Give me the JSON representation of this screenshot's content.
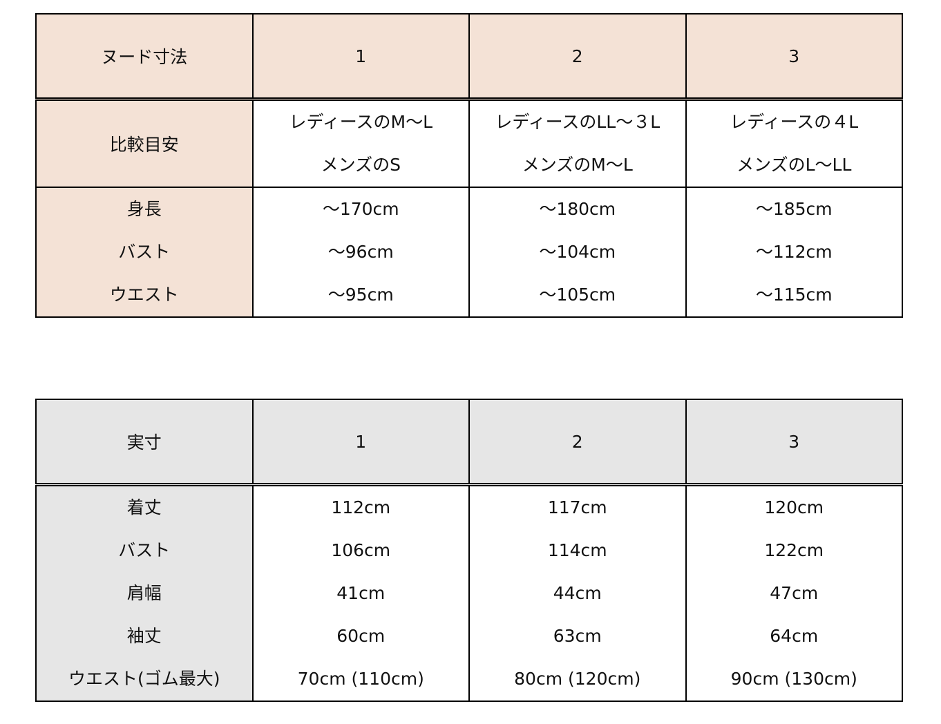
{
  "colors": {
    "nude_header_bg": "#f4e2d6",
    "actual_header_bg": "#e6e6e6"
  },
  "nude_table": {
    "header": [
      "ヌード寸法",
      "1",
      "2",
      "3"
    ],
    "comparison": {
      "label": "比較目安",
      "values": [
        [
          "レディースのM〜L",
          "メンズのS"
        ],
        [
          "レディースのLL〜３L",
          "メンズのM〜L"
        ],
        [
          "レディースの４L",
          "メンズのL〜LL"
        ]
      ]
    },
    "labels": [
      "身長",
      "バスト",
      "ウエスト"
    ],
    "values": [
      [
        "〜170cm",
        "〜96cm",
        "〜95cm"
      ],
      [
        "〜180cm",
        "〜104cm",
        "〜105cm"
      ],
      [
        "〜185cm",
        "〜112cm",
        "〜115cm"
      ]
    ]
  },
  "actual_table": {
    "header": [
      "実寸",
      "1",
      "2",
      "3"
    ],
    "labels": [
      "着丈",
      "バスト",
      "肩幅",
      "袖丈",
      "ウエスト(ゴム最大)"
    ],
    "values": [
      [
        "112cm",
        "106cm",
        "41cm",
        "60cm",
        "70cm (110cm)"
      ],
      [
        "117cm",
        "114cm",
        "44cm",
        "63cm",
        "80cm (120cm)"
      ],
      [
        "120cm",
        "122cm",
        "47cm",
        "64cm",
        "90cm (130cm)"
      ]
    ]
  }
}
